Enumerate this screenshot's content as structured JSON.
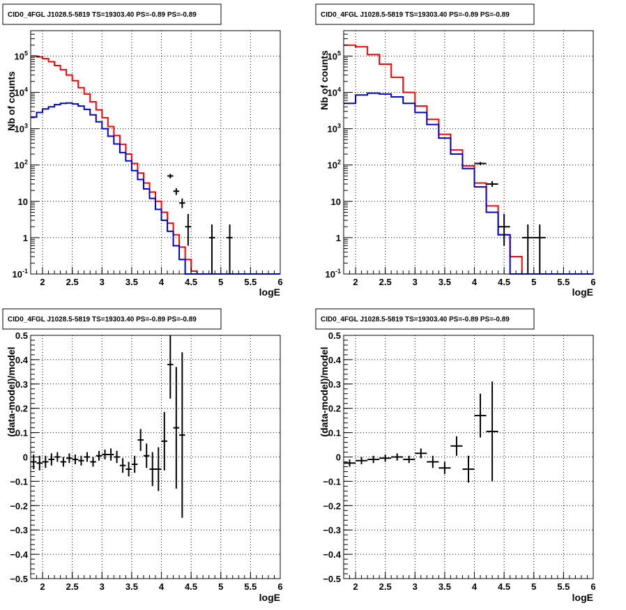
{
  "colors": {
    "data": "#000000",
    "model_total": "#ff0000",
    "model_source": "#0000cc",
    "grid": "#000000",
    "frame": "#000000"
  },
  "chart_data": [
    {
      "type": "line",
      "panel": "top-left",
      "title": "CID0_4FGL J1028.5-5819 TS=19303.40 PS=-0.89 PS=-0.89",
      "xlabel": "logE",
      "ylabel": "Nb of counts",
      "xlim": [
        1.8,
        6.0
      ],
      "ylim": [
        0.1,
        500000
      ],
      "yscale": "log",
      "grid": true,
      "x_ticks": [
        "2",
        "2.5",
        "3",
        "3.5",
        "4",
        "4.5",
        "5",
        "5.5",
        "6"
      ],
      "y_ticks": [
        "10^-1",
        "1",
        "10",
        "10^2",
        "10^3",
        "10^4",
        "10^5"
      ],
      "bin_edges": [
        1.8,
        1.9,
        2.0,
        2.1,
        2.2,
        2.3,
        2.4,
        2.5,
        2.6,
        2.7,
        2.8,
        2.9,
        3.0,
        3.1,
        3.2,
        3.3,
        3.4,
        3.5,
        3.6,
        3.7,
        3.8,
        3.9,
        4.0,
        4.1,
        4.2,
        4.3,
        4.4,
        4.5,
        4.6,
        4.7,
        4.8,
        4.9,
        5.0,
        5.1,
        5.2,
        5.3,
        5.4,
        5.5,
        5.6,
        5.7,
        5.8,
        5.9,
        6.0
      ],
      "series": [
        {
          "name": "",
          "role": "model_total",
          "values": [
            100000,
            95000,
            85000,
            70000,
            55000,
            42000,
            30000,
            21000,
            13500,
            9000,
            5500,
            3300,
            2000,
            1150,
            650,
            370,
            200,
            110,
            60,
            32,
            18,
            10,
            5,
            2.5,
            1.2,
            0.55,
            0.25,
            0.12,
            0.1,
            0.1,
            0.1,
            0.1,
            0.1,
            0.1,
            0.1,
            0.1,
            0.1,
            0.1,
            0.1,
            0.1,
            0.1,
            0.1
          ]
        },
        {
          "name": "",
          "role": "model_source",
          "values": [
            2100,
            2800,
            3500,
            4000,
            4600,
            5000,
            5100,
            4800,
            4200,
            3400,
            2400,
            1550,
            1000,
            620,
            380,
            220,
            130,
            70,
            40,
            22,
            12,
            6,
            3,
            1.5,
            0.6,
            0.25,
            0.1,
            0.1,
            0.1,
            0.1,
            0.1,
            0.1,
            0.1,
            0.1,
            0.1,
            0.1,
            0.1,
            0.1,
            0.1,
            0.1,
            0.1,
            0.1
          ]
        }
      ],
      "data_points": [
        {
          "x": 4.15,
          "xerr": 0.05,
          "y": 50,
          "ylo": 43,
          "yhi": 57
        },
        {
          "x": 4.25,
          "xerr": 0.05,
          "y": 19,
          "ylo": 15,
          "yhi": 23
        },
        {
          "x": 4.35,
          "xerr": 0.05,
          "y": 9,
          "ylo": 6.5,
          "yhi": 12
        },
        {
          "x": 4.45,
          "xerr": 0.05,
          "y": 2,
          "ylo": 0.6,
          "yhi": 4.5
        },
        {
          "x": 4.85,
          "xerr": 0.05,
          "y": 1,
          "ylo": 0.1,
          "yhi": 2.3
        },
        {
          "x": 5.15,
          "xerr": 0.05,
          "y": 1,
          "ylo": 0.1,
          "yhi": 2.3
        }
      ]
    },
    {
      "type": "line",
      "panel": "top-right",
      "title": "CID0_4FGL J1028.5-5819 TS=19303.40 PS=-0.89 PS=-0.89",
      "xlabel": "logE",
      "ylabel": "Nb of counts",
      "xlim": [
        1.8,
        6.0
      ],
      "ylim": [
        0.1,
        500000
      ],
      "yscale": "log",
      "grid": true,
      "x_ticks": [
        "2",
        "2.5",
        "3",
        "3.5",
        "4",
        "4.5",
        "5",
        "5.5",
        "6"
      ],
      "y_ticks": [
        "10^-1",
        "1",
        "10",
        "10^2",
        "10^3",
        "10^4",
        "10^5"
      ],
      "bin_edges": [
        1.8,
        2.0,
        2.2,
        2.4,
        2.6,
        2.8,
        3.0,
        3.2,
        3.4,
        3.6,
        3.8,
        4.0,
        4.2,
        4.4,
        4.6,
        4.8,
        5.0,
        5.2,
        5.4,
        5.6,
        5.8,
        6.0
      ],
      "series": [
        {
          "name": "",
          "role": "model_total",
          "values": [
            200000,
            180000,
            110000,
            60000,
            26000,
            10000,
            4200,
            1800,
            700,
            260,
            95,
            32,
            7.5,
            1.2,
            0.3,
            0.1,
            0.1,
            0.1,
            0.1,
            0.1,
            0.1
          ]
        },
        {
          "name": "",
          "role": "model_source",
          "values": [
            5000,
            8500,
            9500,
            9000,
            7500,
            5000,
            2800,
            1300,
            550,
            200,
            80,
            25,
            5,
            1.2,
            0.1,
            0.1,
            0.1,
            0.1,
            0.1,
            0.1,
            0.1
          ]
        }
      ],
      "data_points": [
        {
          "x": 4.1,
          "xerr": 0.1,
          "y": 110,
          "ylo": 100,
          "yhi": 121
        },
        {
          "x": 4.3,
          "xerr": 0.1,
          "y": 30,
          "ylo": 25,
          "yhi": 36
        },
        {
          "x": 4.5,
          "xerr": 0.1,
          "y": 2,
          "ylo": 0.6,
          "yhi": 4.5
        },
        {
          "x": 4.9,
          "xerr": 0.1,
          "y": 1,
          "ylo": 0.1,
          "yhi": 2.3
        },
        {
          "x": 5.1,
          "xerr": 0.1,
          "y": 1,
          "ylo": 0.1,
          "yhi": 2.3
        }
      ]
    },
    {
      "type": "scatter",
      "panel": "bottom-left",
      "title": "CID0_4FGL J1028.5-5819 TS=19303.40 PS=-0.89 PS=-0.89",
      "xlabel": "logE",
      "ylabel": "(data-model)/model",
      "xlim": [
        1.8,
        6.0
      ],
      "ylim": [
        -0.5,
        0.5
      ],
      "grid": true,
      "x_ticks": [
        "2",
        "2.5",
        "3",
        "3.5",
        "4",
        "4.5",
        "5",
        "5.5",
        "6"
      ],
      "y_ticks": [
        "-0.5",
        "-0.4",
        "-0.3",
        "-0.2",
        "-0.1",
        "0",
        "0.1",
        "0.2",
        "0.3",
        "0.4",
        "0.5"
      ],
      "data_points": [
        {
          "x": 1.85,
          "xerr": 0.05,
          "y": -0.02,
          "err": 0.03
        },
        {
          "x": 1.95,
          "xerr": 0.05,
          "y": -0.025,
          "err": 0.03
        },
        {
          "x": 2.05,
          "xerr": 0.05,
          "y": -0.02,
          "err": 0.025
        },
        {
          "x": 2.15,
          "xerr": 0.05,
          "y": -0.01,
          "err": 0.025
        },
        {
          "x": 2.25,
          "xerr": 0.05,
          "y": 0.0,
          "err": 0.02
        },
        {
          "x": 2.35,
          "xerr": 0.05,
          "y": -0.02,
          "err": 0.02
        },
        {
          "x": 2.45,
          "xerr": 0.05,
          "y": -0.005,
          "err": 0.02
        },
        {
          "x": 2.55,
          "xerr": 0.05,
          "y": -0.01,
          "err": 0.02
        },
        {
          "x": 2.65,
          "xerr": 0.05,
          "y": -0.015,
          "err": 0.02
        },
        {
          "x": 2.75,
          "xerr": 0.05,
          "y": 0.0,
          "err": 0.02
        },
        {
          "x": 2.85,
          "xerr": 0.05,
          "y": -0.02,
          "err": 0.02
        },
        {
          "x": 2.95,
          "xerr": 0.05,
          "y": 0.005,
          "err": 0.02
        },
        {
          "x": 3.05,
          "xerr": 0.05,
          "y": 0.01,
          "err": 0.02
        },
        {
          "x": 3.15,
          "xerr": 0.05,
          "y": 0.01,
          "err": 0.025
        },
        {
          "x": 3.25,
          "xerr": 0.05,
          "y": 0.0,
          "err": 0.025
        },
        {
          "x": 3.35,
          "xerr": 0.05,
          "y": -0.035,
          "err": 0.03
        },
        {
          "x": 3.45,
          "xerr": 0.05,
          "y": -0.05,
          "err": 0.03
        },
        {
          "x": 3.55,
          "xerr": 0.05,
          "y": -0.03,
          "err": 0.035
        },
        {
          "x": 3.65,
          "xerr": 0.05,
          "y": 0.07,
          "err": 0.045
        },
        {
          "x": 3.75,
          "xerr": 0.05,
          "y": 0.005,
          "err": 0.05
        },
        {
          "x": 3.85,
          "xerr": 0.05,
          "y": -0.05,
          "err": 0.07
        },
        {
          "x": 3.95,
          "xerr": 0.05,
          "y": -0.05,
          "err": 0.09
        },
        {
          "x": 4.05,
          "xerr": 0.05,
          "y": 0.065,
          "err": 0.12
        },
        {
          "x": 4.15,
          "xerr": 0.05,
          "y": 0.38,
          "err": 0.14
        },
        {
          "x": 4.25,
          "xerr": 0.05,
          "y": 0.12,
          "err": 0.25
        },
        {
          "x": 4.35,
          "xerr": 0.05,
          "y": 0.09,
          "err": 0.34
        }
      ]
    },
    {
      "type": "scatter",
      "panel": "bottom-right",
      "title": "CID0_4FGL J1028.5-5819 TS=19303.40 PS=-0.89 PS=-0.89",
      "xlabel": "logE",
      "ylabel": "(data-model)/model",
      "xlim": [
        1.8,
        6.0
      ],
      "ylim": [
        -0.5,
        0.5
      ],
      "grid": true,
      "x_ticks": [
        "2",
        "2.5",
        "3",
        "3.5",
        "4",
        "4.5",
        "5",
        "5.5",
        "6"
      ],
      "y_ticks": [
        "-0.5",
        "-0.4",
        "-0.3",
        "-0.2",
        "-0.1",
        "0",
        "0.1",
        "0.2",
        "0.3",
        "0.4",
        "0.5"
      ],
      "data_points": [
        {
          "x": 1.9,
          "xerr": 0.1,
          "y": -0.025,
          "err": 0.015
        },
        {
          "x": 2.1,
          "xerr": 0.1,
          "y": -0.015,
          "err": 0.015
        },
        {
          "x": 2.3,
          "xerr": 0.1,
          "y": -0.01,
          "err": 0.015
        },
        {
          "x": 2.5,
          "xerr": 0.1,
          "y": -0.005,
          "err": 0.015
        },
        {
          "x": 2.7,
          "xerr": 0.1,
          "y": 0.0,
          "err": 0.015
        },
        {
          "x": 2.9,
          "xerr": 0.1,
          "y": -0.01,
          "err": 0.015
        },
        {
          "x": 3.1,
          "xerr": 0.1,
          "y": 0.015,
          "err": 0.02
        },
        {
          "x": 3.3,
          "xerr": 0.1,
          "y": -0.02,
          "err": 0.025
        },
        {
          "x": 3.5,
          "xerr": 0.1,
          "y": -0.045,
          "err": 0.025
        },
        {
          "x": 3.7,
          "xerr": 0.1,
          "y": 0.045,
          "err": 0.04
        },
        {
          "x": 3.9,
          "xerr": 0.1,
          "y": -0.05,
          "err": 0.055
        },
        {
          "x": 4.1,
          "xerr": 0.1,
          "y": 0.17,
          "err": 0.09
        },
        {
          "x": 4.3,
          "xerr": 0.1,
          "y": 0.105,
          "err": 0.205
        }
      ]
    }
  ]
}
